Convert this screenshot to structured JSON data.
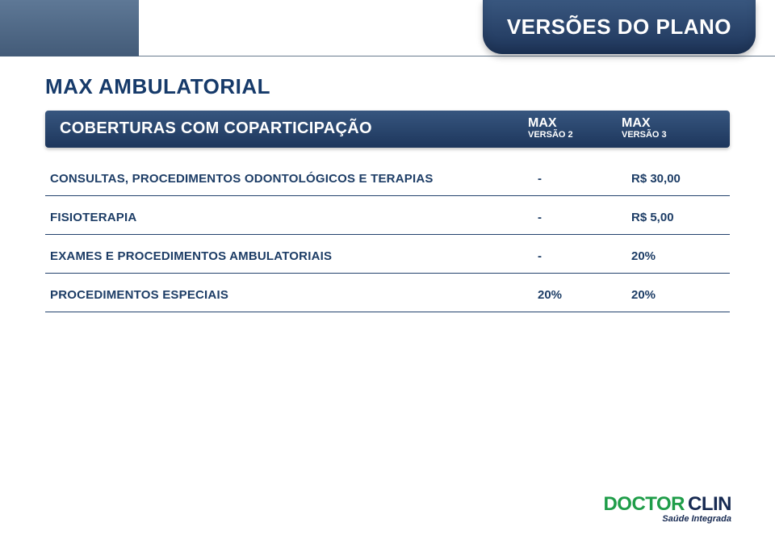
{
  "header": {
    "title": "VERSÕES DO PLANO"
  },
  "section": {
    "title": "MAX AMBULATORIAL"
  },
  "table": {
    "header_label": "COBERTURAS COM COPARTICIPAÇÃO",
    "columns": [
      {
        "big": "MAX",
        "small": "VERSÃO 2"
      },
      {
        "big": "MAX",
        "small": "VERSÃO 3"
      }
    ],
    "rows": [
      {
        "label": "CONSULTAS, PROCEDIMENTOS ODONTOLÓGICOS E TERAPIAS",
        "v1": "-",
        "v2": "R$ 30,00"
      },
      {
        "label": "FISIOTERAPIA",
        "v1": "-",
        "v2": "R$ 5,00"
      },
      {
        "label": "EXAMES E PROCEDIMENTOS AMBULATORIAIS",
        "v1": "-",
        "v2": "20%"
      },
      {
        "label": "PROCEDIMENTOS ESPECIAIS",
        "v1": "20%",
        "v2": "20%"
      }
    ]
  },
  "logo": {
    "word1": "DOCTOR",
    "word2": "CLIN",
    "tagline": "Saúde Integrada"
  },
  "colors": {
    "brand_dark": "#1d365c",
    "brand_mid": "#37567f",
    "text": "#1d3d66",
    "rule": "#23426d",
    "green": "#1f9d49",
    "navy": "#172a52",
    "white": "#ffffff"
  }
}
